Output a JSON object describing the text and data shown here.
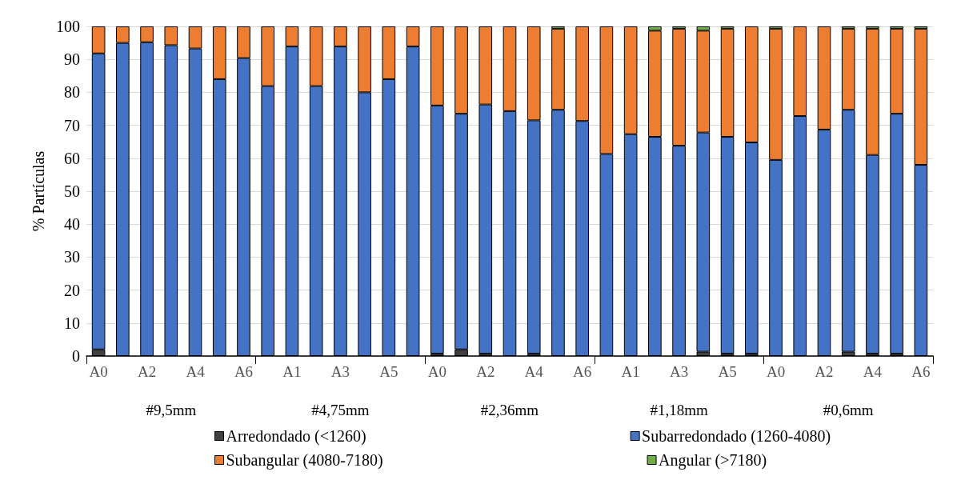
{
  "chart_data": {
    "type": "bar",
    "stacked": true,
    "ylabel": "% Partículas",
    "categories": [
      "A0",
      null,
      "A2",
      null,
      "A4",
      null,
      "A6",
      null,
      "A1",
      null,
      "A3",
      null,
      "A5",
      null,
      "A0",
      null,
      "A2",
      null,
      "A4",
      null,
      "A6",
      null,
      "A1",
      null,
      "A3",
      null,
      "A5",
      null,
      "A0",
      null,
      "A2",
      null,
      "A4",
      null,
      "A6"
    ],
    "series": [
      {
        "name": "Arredondado (<1260)",
        "color": "#404040",
        "values": [
          2,
          0,
          0,
          0,
          0,
          0,
          0,
          0,
          0,
          0,
          0,
          0,
          0,
          0,
          0.7,
          2,
          0.7,
          0,
          0.7,
          0,
          0,
          0,
          0,
          0,
          0,
          1.3,
          0.7,
          0.7,
          0,
          0,
          0,
          1.3,
          0.7,
          0.7,
          0
        ]
      },
      {
        "name": "Subarredondado (1260-4080)",
        "color": "#4472c4",
        "values": [
          89.8,
          95,
          95.2,
          94.3,
          93.3,
          84,
          90.4,
          81.9,
          93.9,
          81.9,
          93.9,
          80,
          84,
          93.9,
          75.3,
          71.5,
          75.6,
          74.3,
          70.8,
          74.7,
          71.3,
          61.3,
          67.3,
          66.5,
          63.8,
          66.5,
          65.8,
          64.1,
          59.5,
          72.8,
          68.7,
          73.4,
          60.3,
          72.8,
          58
        ]
      },
      {
        "name": "Subangular (4080-7180)",
        "color": "#ed7d31",
        "values": [
          8.2,
          5,
          4.8,
          5.7,
          6.7,
          16,
          9.6,
          18.1,
          6.1,
          18.1,
          6.1,
          20,
          16,
          6.1,
          24,
          26.5,
          23.7,
          25.7,
          28.5,
          24.6,
          28.7,
          38.7,
          32.7,
          32.2,
          35.5,
          30.9,
          32.8,
          35.2,
          39.8,
          27.2,
          31.3,
          24.6,
          38.3,
          25.8,
          41.3
        ]
      },
      {
        "name": "Angular (>7180)",
        "color": "#70ad47",
        "values": [
          0,
          0,
          0,
          0,
          0,
          0,
          0,
          0,
          0,
          0,
          0,
          0,
          0,
          0,
          0,
          0,
          0,
          0,
          0,
          0.7,
          0,
          0,
          0,
          1.3,
          0.7,
          1.3,
          0.7,
          0,
          0.7,
          0,
          0,
          0.7,
          0.7,
          0.7,
          0.7
        ]
      }
    ],
    "annotations": [
      "#9,5mm",
      "#4,75mm",
      "#2,36mm",
      "#1,18mm",
      "#0,6mm"
    ],
    "ylim": [
      0,
      100
    ],
    "yticks": [
      0,
      10,
      20,
      30,
      40,
      50,
      60,
      70,
      80,
      90,
      100
    ],
    "grid": "y",
    "legend": "bottom"
  }
}
